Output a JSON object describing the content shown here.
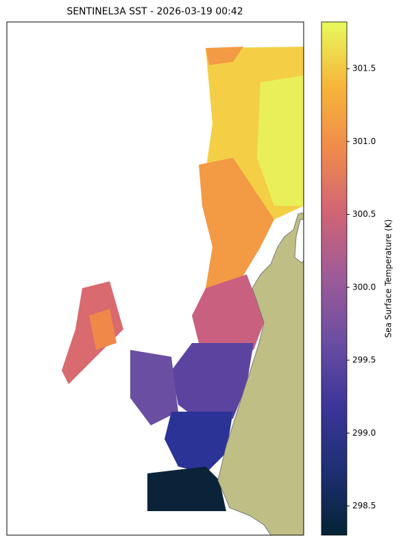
{
  "chart_data": {
    "type": "map",
    "title": "SENTINEL3A SST - 2026-03-19 00:42",
    "colorbar": {
      "label": "Sea Surface Temperature (K)",
      "lim": [
        298.3,
        301.82
      ],
      "ticks": [
        298.5,
        {
          "value": 299,
          "label": "299.0"
        },
        299.5,
        {
          "value": 300,
          "label": "300.0"
        },
        300.5,
        {
          "value": 301,
          "label": "301.0"
        },
        301.5
      ],
      "colormap": [
        "#042333",
        "#1e2f74",
        "#3b3598",
        "#6a4ea2",
        "#9c5a98",
        "#cf6477",
        "#f08a4c",
        "#f6b53a",
        "#e8fa5b"
      ]
    },
    "land_color": "#bfbf85"
  }
}
